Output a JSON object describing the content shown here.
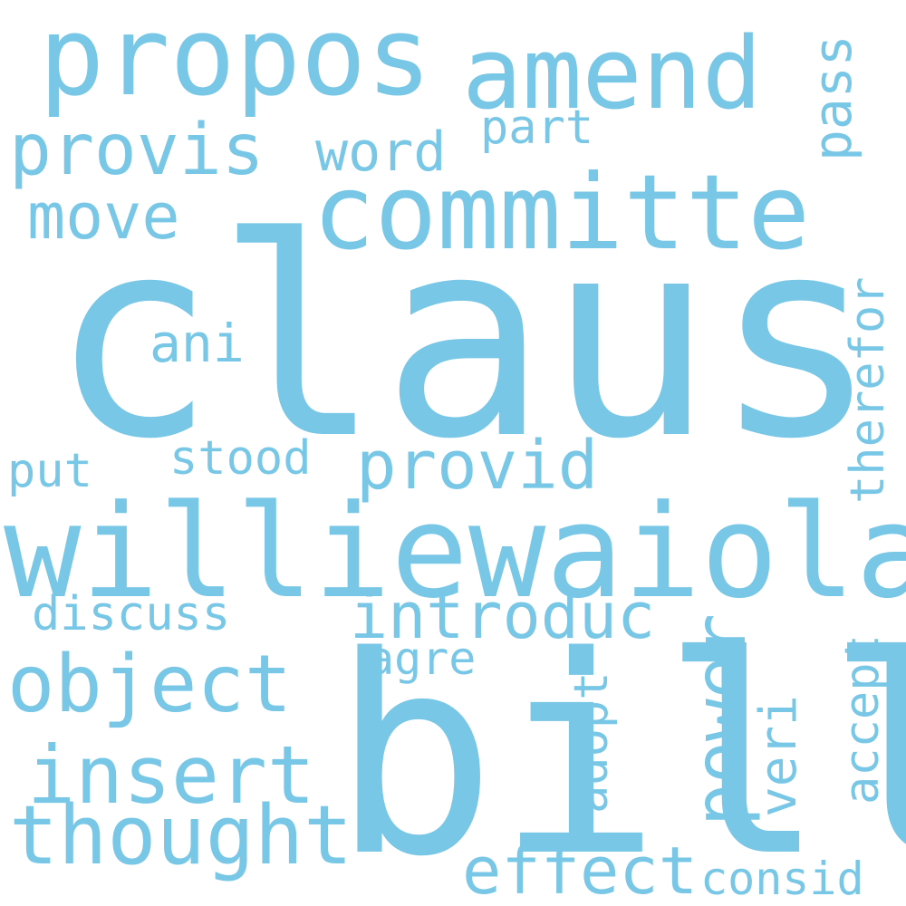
{
  "word_color": "#79c7e6",
  "words": {
    "claus": "claus",
    "bill": "bill",
    "williewaiola": "williewaiola",
    "committe": "committe",
    "propos": "propos",
    "amend": "amend",
    "provis": "provis",
    "object": "object",
    "thought": "thought",
    "insert": "insert",
    "introduc": "introduc",
    "power": "power",
    "effect": "effect",
    "move": "move",
    "provid": "provid",
    "word": "word",
    "consid": "consid",
    "pass": "pass",
    "therefor": "therefor",
    "accept": "accept",
    "adopt": "adopt",
    "veri": "veri",
    "discuss": "discuss",
    "stood": "stood",
    "ani": "ani",
    "part": "part",
    "put": "put",
    "agre": "agre"
  }
}
